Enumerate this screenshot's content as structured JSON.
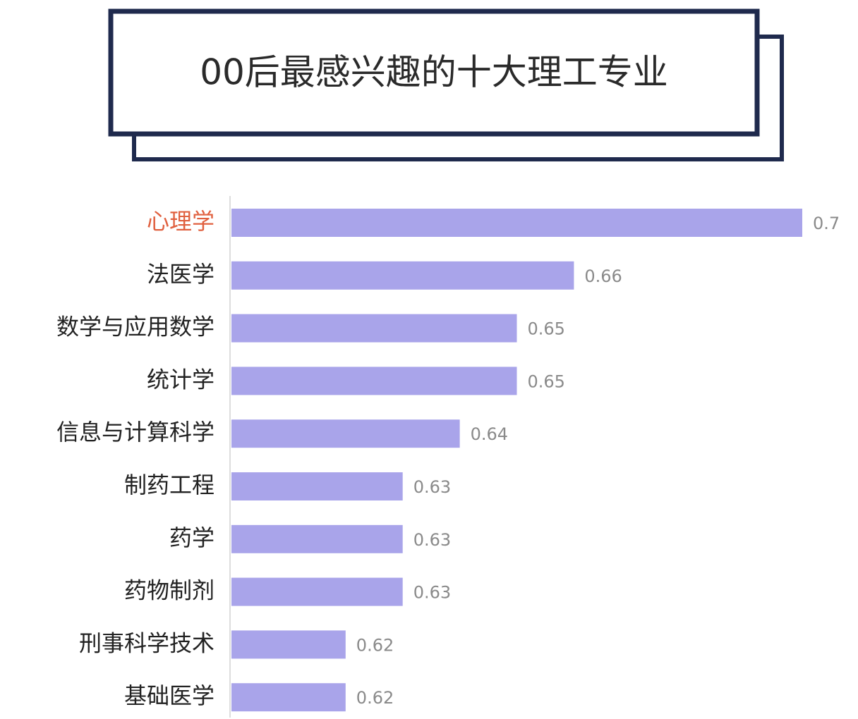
{
  "chart_data": {
    "type": "bar",
    "orientation": "horizontal",
    "title": "00后最感兴趣的十大理工专业",
    "categories": [
      "心理学",
      "法医学",
      "数学与应用数学",
      "统计学",
      "信息与计算科学",
      "制药工程",
      "药学",
      "药物制剂",
      "刑事科学技术",
      "基础医学"
    ],
    "values": [
      0.7,
      0.66,
      0.65,
      0.65,
      0.64,
      0.63,
      0.63,
      0.63,
      0.62,
      0.62
    ],
    "color": "#a9a4ea",
    "label_colors": [
      "#e0603f",
      "#222222",
      "#222222",
      "#222222",
      "#222222",
      "#222222",
      "#222222",
      "#222222",
      "#222222",
      "#222222"
    ],
    "xlim": [
      0.6,
      0.7
    ]
  }
}
